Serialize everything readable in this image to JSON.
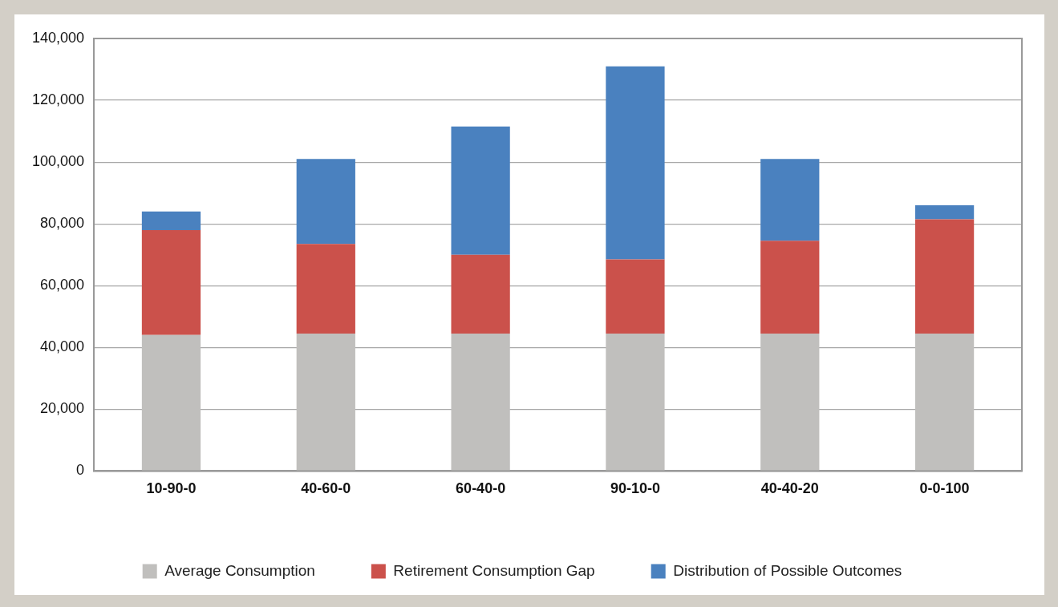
{
  "chart_data": {
    "type": "bar",
    "stacked": true,
    "categories": [
      "10-90-0",
      "40-60-0",
      "60-40-0",
      "90-10-0",
      "40-40-20",
      "0-0-100"
    ],
    "series": [
      {
        "name": "Average Consumption",
        "color": "#c0bfbd",
        "values": [
          44000,
          44500,
          44500,
          44500,
          44500,
          44500
        ]
      },
      {
        "name": "Retirement Consumption Gap",
        "color": "#cb514b",
        "values": [
          34000,
          29000,
          25500,
          24000,
          30000,
          37000
        ]
      },
      {
        "name": "Distribution of Possible Outcomes",
        "color": "#4a81bf",
        "values": [
          6000,
          27500,
          41500,
          62500,
          26500,
          4500
        ]
      }
    ],
    "ylim": [
      0,
      140000
    ],
    "yticks": [
      0,
      {
        "value": 20000,
        "label": "20,000"
      },
      {
        "value": 40000,
        "label": "40,000"
      },
      {
        "value": 60000,
        "label": "60,000"
      },
      {
        "value": 80000,
        "label": "80,000"
      },
      {
        "value": 100000,
        "label": "100,000"
      },
      {
        "value": 120000,
        "label": "120,000"
      },
      {
        "value": 140000,
        "label": "140,000"
      }
    ],
    "grid": "y",
    "legend": "bottom"
  }
}
